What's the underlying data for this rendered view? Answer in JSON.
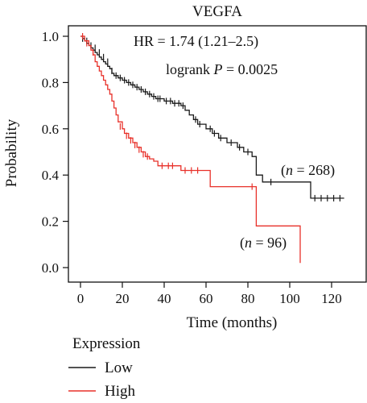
{
  "colors": {
    "low": "#1a1a1a",
    "high": "#e8312a",
    "axis": "#111111"
  },
  "chart_data": {
    "type": "line",
    "title": "VEGFA",
    "xlabel": "Time (months)",
    "ylabel": "Probability",
    "xlim": [
      0,
      130
    ],
    "ylim": [
      0,
      1.05
    ],
    "xticks": [
      "0",
      "20",
      "40",
      "60",
      "80",
      "100",
      "120"
    ],
    "yticks": [
      "0.0",
      "0.2",
      "0.4",
      "0.6",
      "0.8",
      "1.0"
    ],
    "legend_title": "Expression",
    "legend_position": "bottom-left",
    "annotations": {
      "hr": "HR = 1.74 (1.21–2.5)",
      "logrank_prefix": "logrank ",
      "logrank_p": "P",
      "logrank_value": " = 0.0025",
      "n_low_n": "n",
      "n_low_value": " = 268",
      "n_high_n": "n",
      "n_high_value": " = 96"
    },
    "series": [
      {
        "name": "Low",
        "color": "#1a1a1a",
        "steps": [
          [
            0,
            1.0
          ],
          [
            1,
            0.99
          ],
          [
            2,
            0.98
          ],
          [
            3,
            0.97
          ],
          [
            4,
            0.96
          ],
          [
            5,
            0.95
          ],
          [
            6,
            0.94
          ],
          [
            7,
            0.93
          ],
          [
            8,
            0.92
          ],
          [
            9,
            0.91
          ],
          [
            10,
            0.9
          ],
          [
            11,
            0.89
          ],
          [
            12,
            0.88
          ],
          [
            13,
            0.87
          ],
          [
            14,
            0.86
          ],
          [
            15,
            0.84
          ],
          [
            16,
            0.83
          ],
          [
            18,
            0.82
          ],
          [
            20,
            0.81
          ],
          [
            22,
            0.8
          ],
          [
            24,
            0.79
          ],
          [
            26,
            0.78
          ],
          [
            28,
            0.77
          ],
          [
            30,
            0.76
          ],
          [
            32,
            0.75
          ],
          [
            34,
            0.74
          ],
          [
            36,
            0.73
          ],
          [
            40,
            0.72
          ],
          [
            44,
            0.71
          ],
          [
            48,
            0.7
          ],
          [
            50,
            0.68
          ],
          [
            52,
            0.66
          ],
          [
            54,
            0.64
          ],
          [
            56,
            0.62
          ],
          [
            60,
            0.6
          ],
          [
            63,
            0.58
          ],
          [
            66,
            0.56
          ],
          [
            70,
            0.54
          ],
          [
            75,
            0.52
          ],
          [
            78,
            0.5
          ],
          [
            82,
            0.48
          ],
          [
            84,
            0.4
          ],
          [
            87,
            0.37
          ],
          [
            110,
            0.3
          ],
          [
            126,
            0.3
          ]
        ],
        "censored": [
          [
            1,
            0.99
          ],
          [
            3,
            0.98
          ],
          [
            5,
            0.96
          ],
          [
            7,
            0.95
          ],
          [
            9,
            0.93
          ],
          [
            11,
            0.91
          ],
          [
            13,
            0.89
          ],
          [
            15,
            0.85
          ],
          [
            17,
            0.83
          ],
          [
            19,
            0.82
          ],
          [
            21,
            0.81
          ],
          [
            23,
            0.8
          ],
          [
            25,
            0.79
          ],
          [
            27,
            0.78
          ],
          [
            29,
            0.77
          ],
          [
            31,
            0.76
          ],
          [
            33,
            0.75
          ],
          [
            35,
            0.74
          ],
          [
            37,
            0.73
          ],
          [
            38,
            0.73
          ],
          [
            41,
            0.72
          ],
          [
            43,
            0.72
          ],
          [
            45,
            0.71
          ],
          [
            47,
            0.71
          ],
          [
            49,
            0.7
          ],
          [
            55,
            0.64
          ],
          [
            57,
            0.62
          ],
          [
            62,
            0.6
          ],
          [
            64,
            0.58
          ],
          [
            67,
            0.56
          ],
          [
            72,
            0.54
          ],
          [
            76,
            0.52
          ],
          [
            80,
            0.5
          ],
          [
            91,
            0.37
          ],
          [
            112,
            0.3
          ],
          [
            115,
            0.3
          ],
          [
            118,
            0.3
          ],
          [
            121,
            0.3
          ],
          [
            124,
            0.3
          ]
        ]
      },
      {
        "name": "High",
        "color": "#e8312a",
        "steps": [
          [
            0,
            1.0
          ],
          [
            2,
            0.98
          ],
          [
            4,
            0.96
          ],
          [
            5,
            0.94
          ],
          [
            6,
            0.92
          ],
          [
            7,
            0.89
          ],
          [
            8,
            0.87
          ],
          [
            9,
            0.85
          ],
          [
            10,
            0.83
          ],
          [
            11,
            0.81
          ],
          [
            12,
            0.79
          ],
          [
            13,
            0.77
          ],
          [
            14,
            0.75
          ],
          [
            15,
            0.72
          ],
          [
            16,
            0.69
          ],
          [
            17,
            0.66
          ],
          [
            18,
            0.63
          ],
          [
            20,
            0.6
          ],
          [
            21,
            0.58
          ],
          [
            23,
            0.56
          ],
          [
            25,
            0.54
          ],
          [
            27,
            0.52
          ],
          [
            29,
            0.5
          ],
          [
            31,
            0.48
          ],
          [
            33,
            0.47
          ],
          [
            35,
            0.46
          ],
          [
            37,
            0.44
          ],
          [
            48,
            0.42
          ],
          [
            62,
            0.35
          ],
          [
            84,
            0.18
          ],
          [
            105,
            0.02
          ]
        ],
        "censored": [
          [
            1,
            1.0
          ],
          [
            3,
            0.97
          ],
          [
            6,
            0.93
          ],
          [
            19,
            0.61
          ],
          [
            22,
            0.57
          ],
          [
            24,
            0.55
          ],
          [
            26,
            0.53
          ],
          [
            28,
            0.51
          ],
          [
            30,
            0.49
          ],
          [
            32,
            0.48
          ],
          [
            39,
            0.44
          ],
          [
            42,
            0.44
          ],
          [
            44,
            0.44
          ],
          [
            50,
            0.42
          ],
          [
            53,
            0.42
          ],
          [
            56,
            0.42
          ],
          [
            82,
            0.35
          ]
        ]
      }
    ]
  }
}
